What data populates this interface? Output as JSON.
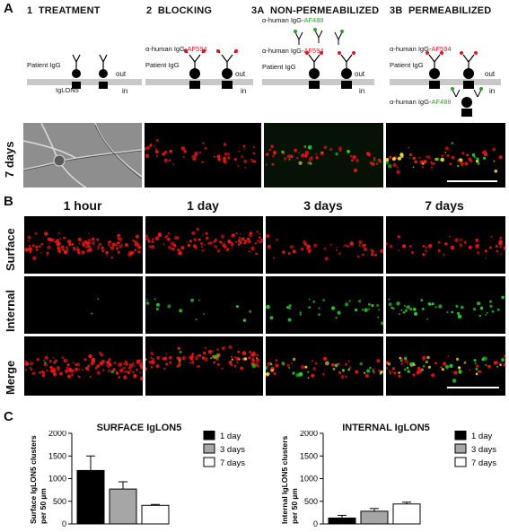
{
  "panel_a": {
    "letter": "A",
    "steps": [
      {
        "num": "1",
        "title": "TREATMENT"
      },
      {
        "num": "2",
        "title": "BLOCKING"
      },
      {
        "num": "3A",
        "title": "NON-PERMEABILIZED"
      },
      {
        "num": "3B",
        "title": "PERMEABILIZED"
      }
    ],
    "labels": {
      "patient_igg": "Patient IgG",
      "iglon5": "IgLON5",
      "out": "out",
      "in": "in",
      "anti_prefix": "α-human IgG-",
      "af594": "AF594",
      "af488": "AF488"
    },
    "row_label": "7 days"
  },
  "panel_b": {
    "letter": "B",
    "times": [
      "1 hour",
      "1 day",
      "3 days",
      "7 days"
    ],
    "rows": [
      "Surface",
      "Internal",
      "Merge"
    ]
  },
  "panel_c": {
    "letter": "C",
    "legend": [
      "1 day",
      "3 days",
      "7 days"
    ],
    "legend_colors": [
      "#000000",
      "#a6a6a6",
      "#ffffff"
    ]
  },
  "chart_data": [
    {
      "type": "bar",
      "title": "SURFACE IgLON5",
      "ylabel": "Surface IgLON5 clusters per 50 µm",
      "categories": [
        "1 day",
        "3 days",
        "7 days"
      ],
      "values": [
        1180,
        770,
        410
      ],
      "errors": [
        320,
        160,
        20
      ],
      "ylim": [
        0,
        2000
      ],
      "yticks": [
        "0",
        "500",
        "1000",
        "1500",
        "2000"
      ]
    },
    {
      "type": "bar",
      "title": "INTERNAL IgLON5",
      "ylabel": "Internal IgLON5 clusters per 50 µm",
      "categories": [
        "1 day",
        "3 days",
        "7 days"
      ],
      "values": [
        130,
        280,
        440
      ],
      "errors": [
        60,
        60,
        40
      ],
      "ylim": [
        0,
        2000
      ],
      "yticks": [
        "0",
        "500",
        "1000",
        "1500",
        "2000"
      ]
    }
  ]
}
